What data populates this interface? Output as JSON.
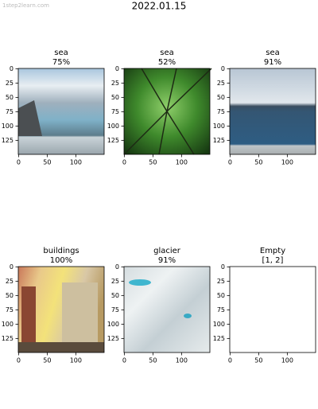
{
  "watermark": "1step2learn.com",
  "title": "2022.01.15",
  "chart_data": [
    {
      "type": "image",
      "title": "sea",
      "subtitle": "75%",
      "xlim": [
        -0.5,
        149.5
      ],
      "ylim": [
        149.5,
        -0.5
      ],
      "xticks": [
        0,
        50,
        100
      ],
      "yticks": [
        0,
        25,
        50,
        75,
        100,
        125
      ]
    },
    {
      "type": "image",
      "title": "sea",
      "subtitle": "52%",
      "xlim": [
        -0.5,
        149.5
      ],
      "ylim": [
        149.5,
        -0.5
      ],
      "xticks": [
        0,
        50,
        100
      ],
      "yticks": [
        0,
        25,
        50,
        75,
        100,
        125
      ]
    },
    {
      "type": "image",
      "title": "sea",
      "subtitle": "91%",
      "xlim": [
        -0.5,
        149.5
      ],
      "ylim": [
        149.5,
        -0.5
      ],
      "xticks": [
        0,
        50,
        100
      ],
      "yticks": [
        0,
        25,
        50,
        75,
        100,
        125
      ]
    },
    {
      "type": "image",
      "title": "buildings",
      "subtitle": "100%",
      "xlim": [
        -0.5,
        149.5
      ],
      "ylim": [
        149.5,
        -0.5
      ],
      "xticks": [
        0,
        50,
        100
      ],
      "yticks": [
        0,
        25,
        50,
        75,
        100,
        125
      ]
    },
    {
      "type": "image",
      "title": "glacier",
      "subtitle": "91%",
      "xlim": [
        -0.5,
        149.5
      ],
      "ylim": [
        149.5,
        -0.5
      ],
      "xticks": [
        0,
        50,
        100
      ],
      "yticks": [
        0,
        25,
        50,
        75,
        100,
        125
      ]
    },
    {
      "type": "image",
      "title": "Empty",
      "subtitle": "[1, 2]",
      "xlim": [
        -0.5,
        149.5
      ],
      "ylim": [
        149.5,
        -0.5
      ],
      "xticks": [
        0,
        50,
        100
      ],
      "yticks": [
        0,
        25,
        50,
        75,
        100,
        125
      ]
    }
  ]
}
